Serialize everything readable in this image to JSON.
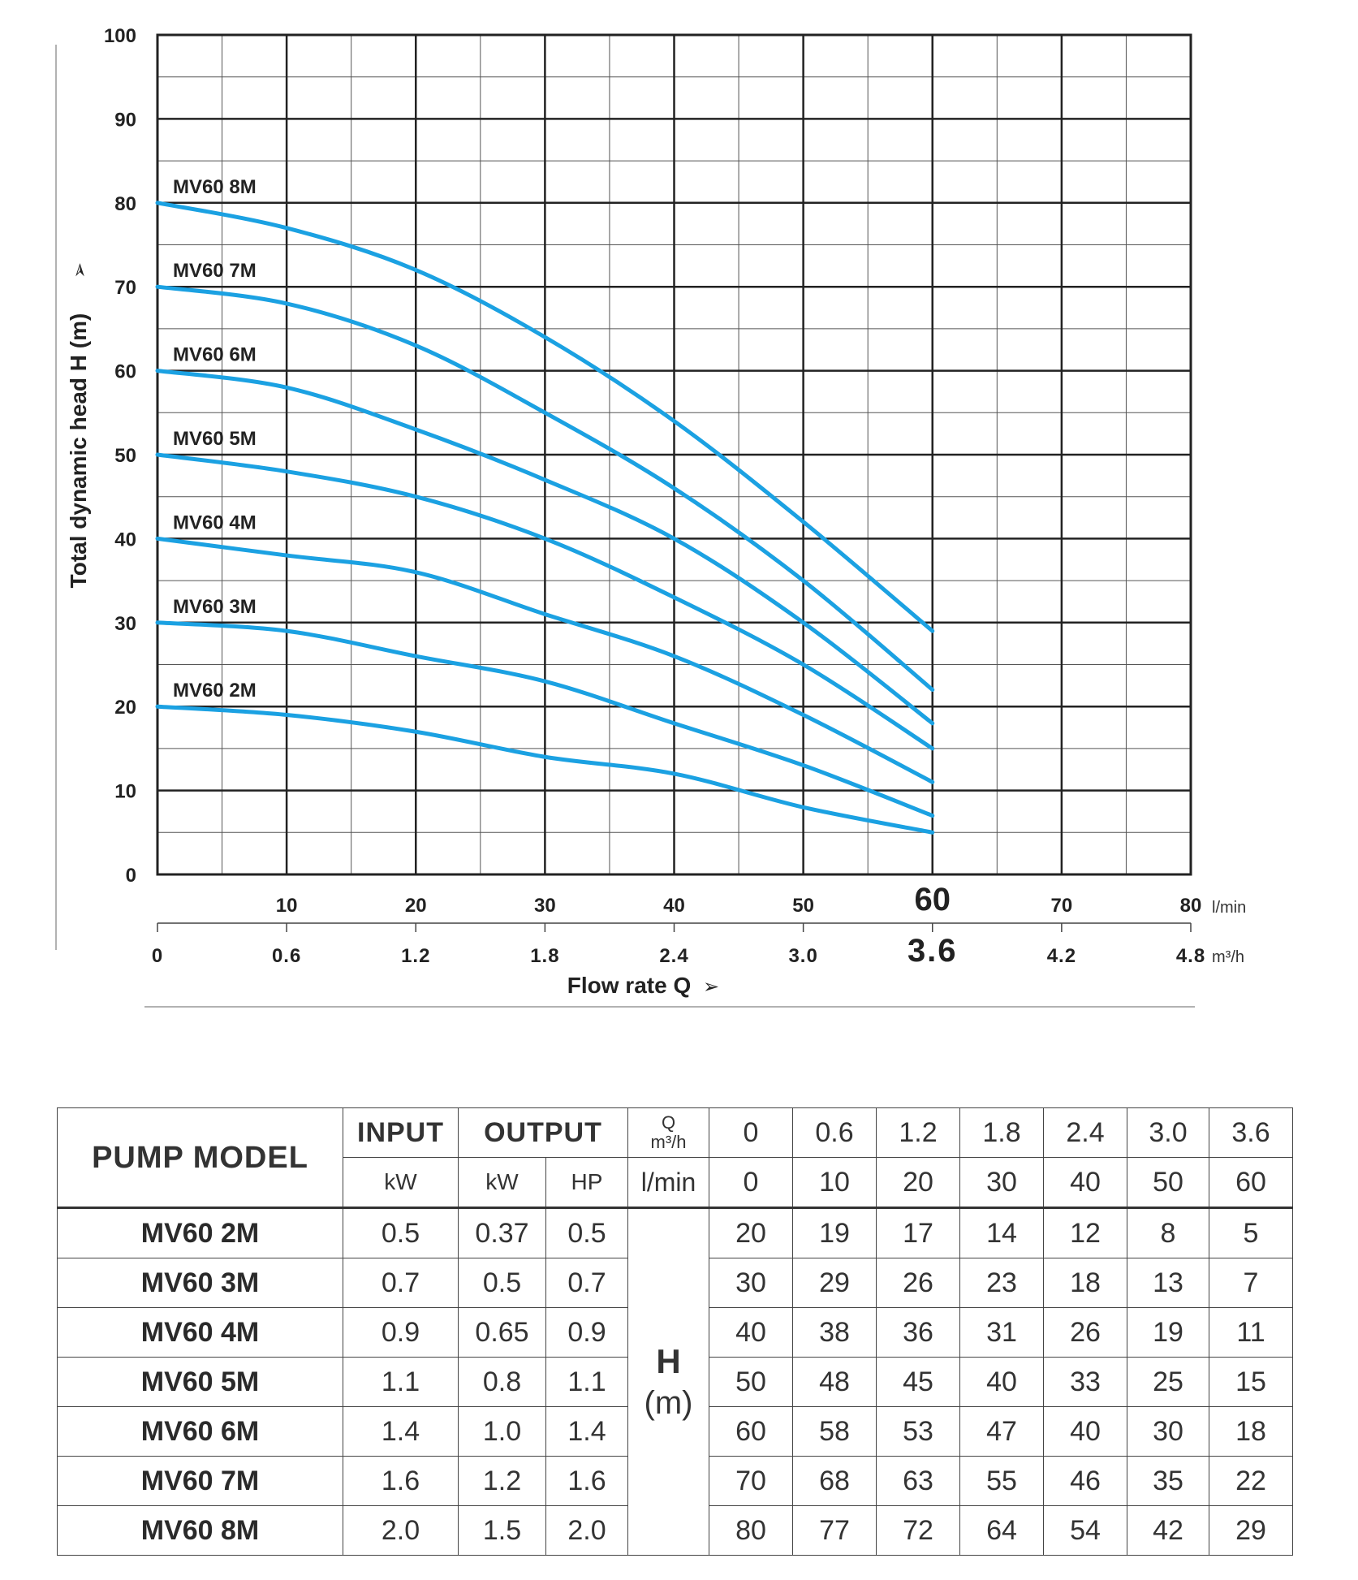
{
  "chart_data": {
    "type": "line",
    "ylabel": "Total dynamic head H (m)",
    "xlabel": "Flow rate Q",
    "ylim": [
      0,
      100
    ],
    "xlim": [
      0,
      80
    ],
    "y_ticks": [
      "0",
      "10",
      "20",
      "30",
      "40",
      "50",
      "60",
      "70",
      "80",
      "90",
      "100"
    ],
    "x_ticks_lmin": [
      "10",
      "20",
      "30",
      "40",
      "50",
      "60",
      "70",
      "80"
    ],
    "x_unit_lmin": "l/min",
    "x_ticks_m3h": [
      "0",
      "0.6",
      "1.2",
      "1.8",
      "2.4",
      "3.0",
      "3.6",
      "4.2",
      "4.8"
    ],
    "x_unit_m3h": "m³/h",
    "highlight_tick_lmin": "60",
    "highlight_tick_m3h": "3.6",
    "x": [
      0,
      10,
      20,
      30,
      40,
      50,
      60
    ],
    "series": [
      {
        "name": "MV60 2M",
        "values": [
          20,
          19,
          17,
          14,
          12,
          8,
          5
        ]
      },
      {
        "name": "MV60 3M",
        "values": [
          30,
          29,
          26,
          23,
          18,
          13,
          7
        ]
      },
      {
        "name": "MV60 4M",
        "values": [
          40,
          38,
          36,
          31,
          26,
          19,
          11
        ]
      },
      {
        "name": "MV60 5M",
        "values": [
          50,
          48,
          45,
          40,
          33,
          25,
          15
        ]
      },
      {
        "name": "MV60 6M",
        "values": [
          60,
          58,
          53,
          47,
          40,
          30,
          18
        ]
      },
      {
        "name": "MV60 7M",
        "values": [
          70,
          68,
          63,
          55,
          46,
          35,
          22
        ]
      },
      {
        "name": "MV60 8M",
        "values": [
          80,
          77,
          72,
          64,
          54,
          42,
          29
        ]
      }
    ],
    "line_color": "#1ba1e2"
  },
  "table": {
    "header": {
      "model": "PUMP MODEL",
      "input": "INPUT",
      "output": "OUTPUT",
      "q_label": "Q",
      "q_unit": "m³/h",
      "input_unit": "kW",
      "output_kw": "kW",
      "output_hp": "HP",
      "lmin_unit": "l/min",
      "q_m3h": [
        "0",
        "0.6",
        "1.2",
        "1.8",
        "2.4",
        "3.0",
        "3.6"
      ],
      "q_lmin": [
        "0",
        "10",
        "20",
        "30",
        "40",
        "50",
        "60"
      ]
    },
    "h_label": "H",
    "h_unit": "(m)",
    "rows": [
      {
        "model": "MV60 2M",
        "input_kw": "0.5",
        "output_kw": "0.37",
        "output_hp": "0.5",
        "heads": [
          "20",
          "19",
          "17",
          "14",
          "12",
          "8",
          "5"
        ]
      },
      {
        "model": "MV60 3M",
        "input_kw": "0.7",
        "output_kw": "0.5",
        "output_hp": "0.7",
        "heads": [
          "30",
          "29",
          "26",
          "23",
          "18",
          "13",
          "7"
        ]
      },
      {
        "model": "MV60 4M",
        "input_kw": "0.9",
        "output_kw": "0.65",
        "output_hp": "0.9",
        "heads": [
          "40",
          "38",
          "36",
          "31",
          "26",
          "19",
          "11"
        ]
      },
      {
        "model": "MV60 5M",
        "input_kw": "1.1",
        "output_kw": "0.8",
        "output_hp": "1.1",
        "heads": [
          "50",
          "48",
          "45",
          "40",
          "33",
          "25",
          "15"
        ]
      },
      {
        "model": "MV60 6M",
        "input_kw": "1.4",
        "output_kw": "1.0",
        "output_hp": "1.4",
        "heads": [
          "60",
          "58",
          "53",
          "47",
          "40",
          "30",
          "18"
        ]
      },
      {
        "model": "MV60 7M",
        "input_kw": "1.6",
        "output_kw": "1.2",
        "output_hp": "1.6",
        "heads": [
          "70",
          "68",
          "63",
          "55",
          "46",
          "35",
          "22"
        ]
      },
      {
        "model": "MV60 8M",
        "input_kw": "2.0",
        "output_kw": "1.5",
        "output_hp": "2.0",
        "heads": [
          "80",
          "77",
          "72",
          "64",
          "54",
          "42",
          "29"
        ]
      }
    ]
  }
}
